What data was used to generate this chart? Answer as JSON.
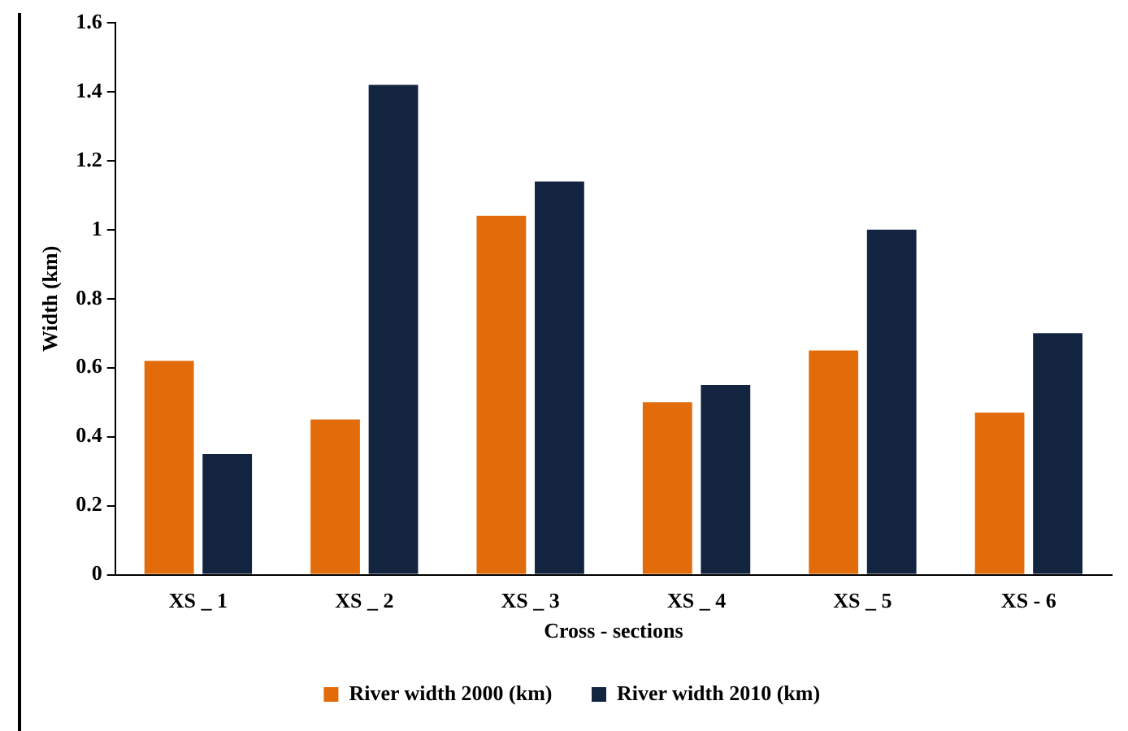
{
  "chart_data": {
    "type": "bar",
    "xlabel": "Cross - sections",
    "ylabel": "Width (km)",
    "categories": [
      "XS _ 1",
      "XS _ 2",
      "XS _ 3",
      "XS _ 4",
      "XS _ 5",
      "XS - 6"
    ],
    "series": [
      {
        "name": "River width 2000 (km)",
        "color": "#e36c0a",
        "values": [
          0.62,
          0.45,
          1.04,
          0.5,
          0.65,
          0.47
        ]
      },
      {
        "name": "River width 2010 (km)",
        "color": "#12243f",
        "values": [
          0.35,
          1.42,
          1.14,
          0.55,
          1.0,
          0.7
        ]
      }
    ],
    "ylim": [
      0,
      1.6
    ],
    "yticks": [
      0,
      0.2,
      0.4,
      0.6,
      0.8,
      1,
      1.2,
      1.4,
      1.6
    ],
    "grid": false,
    "legend": "bottom"
  }
}
